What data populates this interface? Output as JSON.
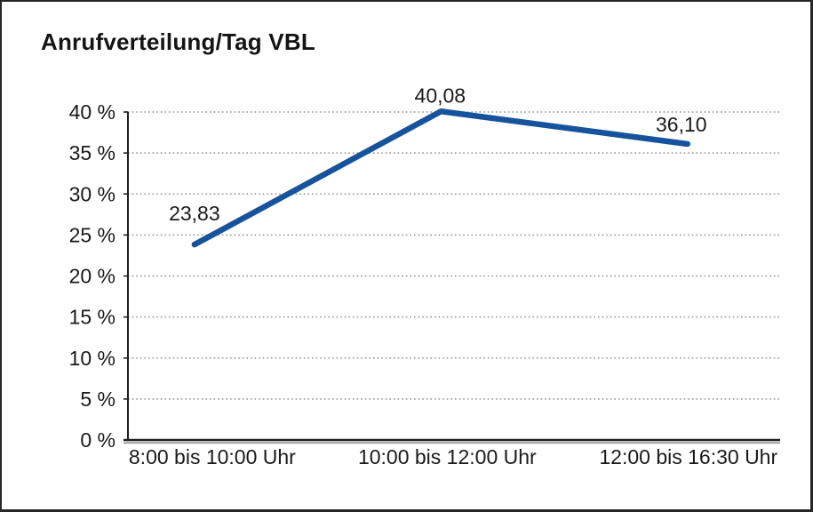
{
  "window": {
    "title": "Anrufverteilung/Tag VBL"
  },
  "chart_data": {
    "type": "line",
    "title": "Anrufverteilung/Tag VBL",
    "categories": [
      "8:00 bis 10:00 Uhr",
      "10:00 bis 12:00 Uhr",
      "12:00 bis 16:30 Uhr"
    ],
    "series": [
      {
        "name": "Anrufverteilung",
        "values": [
          23.83,
          40.08,
          36.1
        ],
        "value_labels": [
          "23,83",
          "40,08",
          "36,10"
        ]
      }
    ],
    "xlabel": "",
    "ylabel": "",
    "y_axis": {
      "min": 0,
      "max": 40,
      "step": 5,
      "unit": "%",
      "tick_labels": [
        "0 %",
        "5 %",
        "10 %",
        "15 %",
        "20 %",
        "25 %",
        "30 %",
        "35 %",
        "40 %"
      ]
    },
    "grid": "horizontal dotted lines at each 5% step",
    "legend": "none",
    "marker": "none"
  },
  "colors": {
    "line": "#17539d",
    "grid": "#8f8f8f",
    "axis": "#1f1f1f",
    "axis_shadow": "#9b9b9b",
    "text": "#1a1a1a",
    "background": "#ffffff",
    "border": "#262626"
  }
}
